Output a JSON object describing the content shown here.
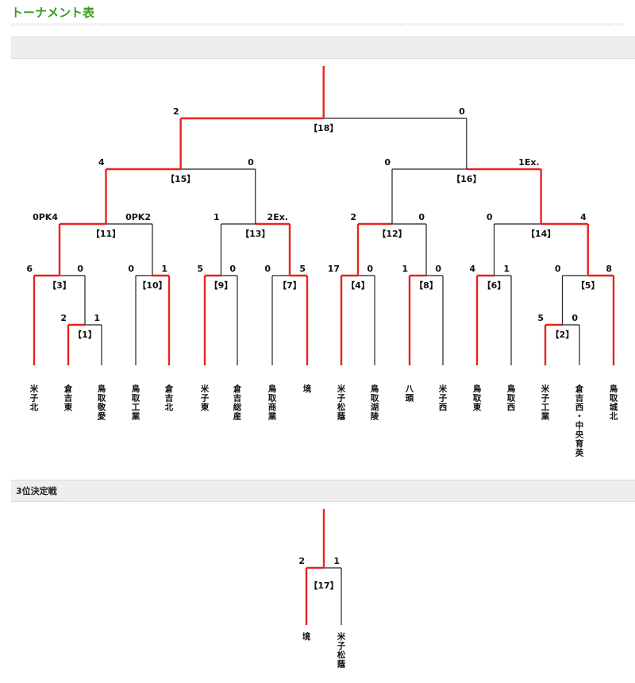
{
  "page_title": "トーナメント表",
  "section1_title": "",
  "section2_title": "3位決定戦",
  "colors": {
    "winner_line": "#e8231f",
    "loser_line": "#222222",
    "title": "#3b9a1c"
  },
  "teams": {
    "t1": "米子北",
    "t2": "倉吉東",
    "t3": "鳥取敬愛",
    "t4": "鳥取工業",
    "t5": "倉吉北",
    "t6": "米子東",
    "t7": "倉吉総産",
    "t8": "鳥取商業",
    "t9": "境",
    "t10": "米子松蔭",
    "t11": "鳥取湖陵",
    "t12": "八頭",
    "t13": "米子西",
    "t14": "鳥取東",
    "t15": "鳥取西",
    "t16": "米子工業",
    "t17": "倉吉西・中央育英",
    "t18": "鳥取城北"
  },
  "matches": [
    {
      "no": "【1】",
      "left": "2",
      "right": "1",
      "winner": "left"
    },
    {
      "no": "【2】",
      "left": "5",
      "right": "0",
      "winner": "left"
    },
    {
      "no": "【3】",
      "left": "6",
      "right": "0",
      "winner": "left"
    },
    {
      "no": "【10】",
      "left": "0",
      "right": "1",
      "winner": "right"
    },
    {
      "no": "【9】",
      "left": "5",
      "right": "0",
      "winner": "left"
    },
    {
      "no": "【7】",
      "left": "0",
      "right": "5",
      "winner": "right"
    },
    {
      "no": "【4】",
      "left": "17",
      "right": "0",
      "winner": "left"
    },
    {
      "no": "【8】",
      "left": "1",
      "right": "0",
      "winner": "left"
    },
    {
      "no": "【6】",
      "left": "4",
      "right": "1",
      "winner": "left"
    },
    {
      "no": "【5】",
      "left": "0",
      "right": "8",
      "winner": "right"
    },
    {
      "no": "【11】",
      "left": "0PK4",
      "right": "0PK2",
      "winner": "left"
    },
    {
      "no": "【13】",
      "left": "1",
      "right": "2Ex.",
      "winner": "right"
    },
    {
      "no": "【12】",
      "left": "2",
      "right": "0",
      "winner": "left"
    },
    {
      "no": "【14】",
      "left": "0",
      "right": "4",
      "winner": "right"
    },
    {
      "no": "【15】",
      "left": "4",
      "right": "0",
      "winner": "left"
    },
    {
      "no": "【16】",
      "left": "0",
      "right": "1Ex.",
      "winner": "right"
    },
    {
      "no": "【18】",
      "left": "2",
      "right": "0",
      "winner": "left"
    },
    {
      "no": "【17】",
      "left": "2",
      "right": "1",
      "winner": "left"
    }
  ],
  "third_place": {
    "left_team": "境",
    "right_team": "米子松蔭"
  }
}
